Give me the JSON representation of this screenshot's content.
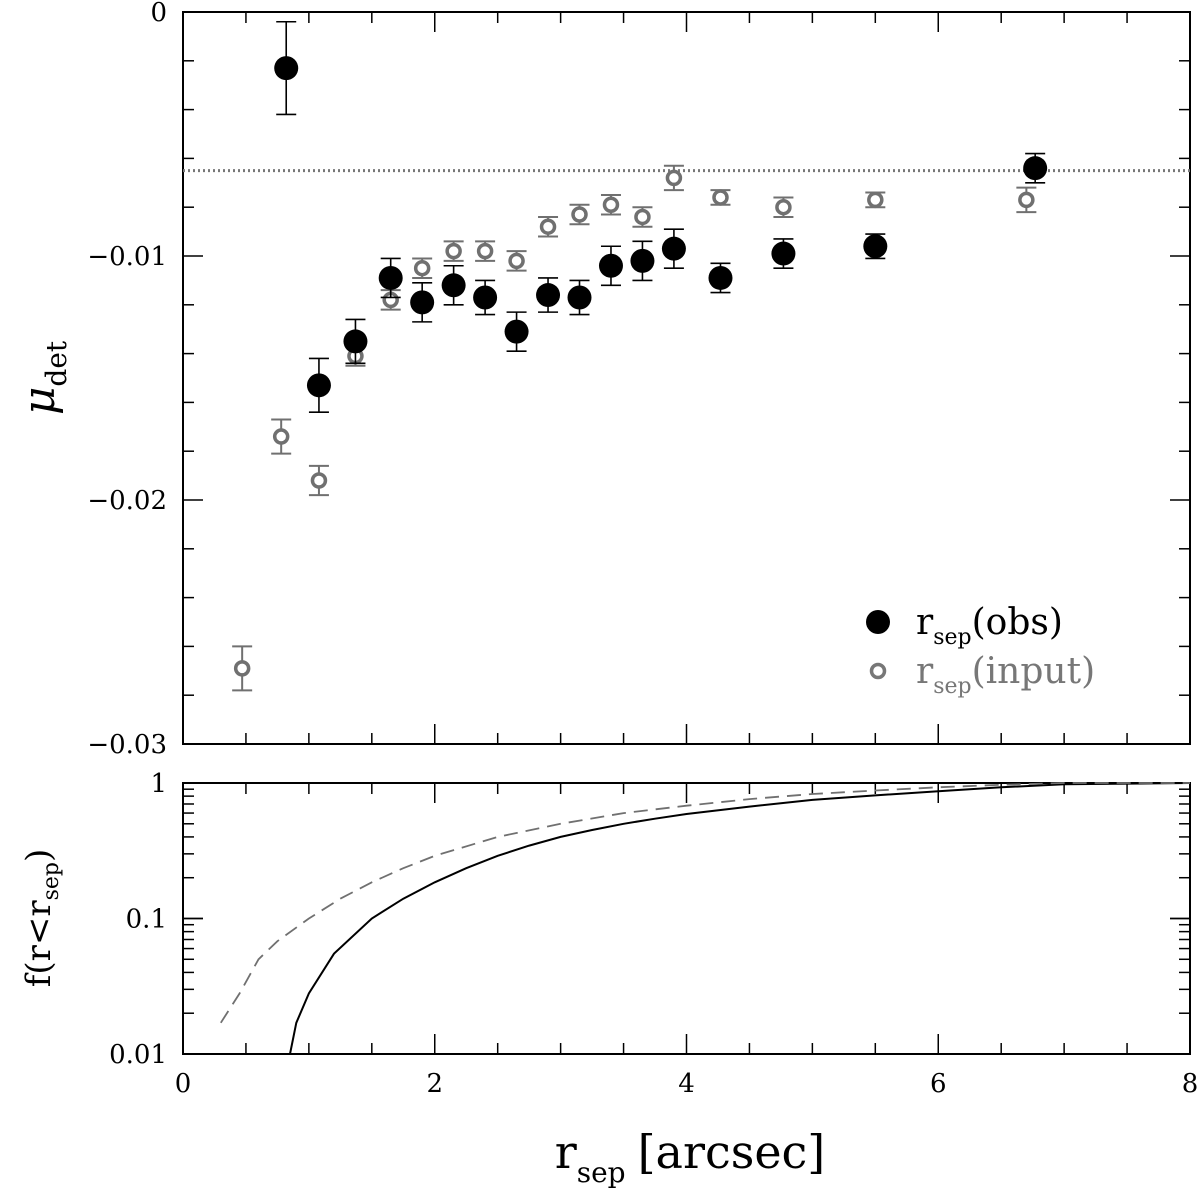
{
  "chart_data": [
    {
      "type": "scatter",
      "panel": "top",
      "ylabel": "μ",
      "ylabel_sub": "det",
      "xlim": [
        0,
        8
      ],
      "ylim": [
        -0.03,
        0
      ],
      "yticks": [
        0,
        -0.01,
        -0.02,
        -0.03
      ],
      "ytick_labels": [
        "0",
        "−0.01",
        "−0.02",
        "−0.03"
      ],
      "reference_line": {
        "y": -0.0065,
        "style": "dotted"
      },
      "series": [
        {
          "name": "r_sep(obs)",
          "legend_main": "r",
          "legend_sub": "sep",
          "legend_tail": "(obs)",
          "marker": "filled-circle",
          "color": "#000000",
          "points": [
            {
              "x": 0.82,
              "y": -0.0023,
              "err": 0.0019
            },
            {
              "x": 1.08,
              "y": -0.0153,
              "err": 0.0011
            },
            {
              "x": 1.37,
              "y": -0.0135,
              "err": 0.0009
            },
            {
              "x": 1.65,
              "y": -0.0109,
              "err": 0.0008
            },
            {
              "x": 1.9,
              "y": -0.0119,
              "err": 0.0008
            },
            {
              "x": 2.15,
              "y": -0.0112,
              "err": 0.0008
            },
            {
              "x": 2.4,
              "y": -0.0117,
              "err": 0.0007
            },
            {
              "x": 2.65,
              "y": -0.0131,
              "err": 0.0008
            },
            {
              "x": 2.9,
              "y": -0.0116,
              "err": 0.0007
            },
            {
              "x": 3.15,
              "y": -0.0117,
              "err": 0.0007
            },
            {
              "x": 3.4,
              "y": -0.0104,
              "err": 0.0008
            },
            {
              "x": 3.65,
              "y": -0.0102,
              "err": 0.0008
            },
            {
              "x": 3.9,
              "y": -0.0097,
              "err": 0.0008
            },
            {
              "x": 4.27,
              "y": -0.0109,
              "err": 0.0006
            },
            {
              "x": 4.77,
              "y": -0.0099,
              "err": 0.0006
            },
            {
              "x": 5.5,
              "y": -0.0096,
              "err": 0.0005
            },
            {
              "x": 6.77,
              "y": -0.0064,
              "err": 0.0006
            }
          ]
        },
        {
          "name": "r_sep(input)",
          "legend_main": "r",
          "legend_sub": "sep",
          "legend_tail": "(input)",
          "marker": "open-circle",
          "color": "#707070",
          "points": [
            {
              "x": 0.47,
              "y": -0.0269,
              "err": 0.0009
            },
            {
              "x": 0.78,
              "y": -0.0174,
              "err": 0.0007
            },
            {
              "x": 1.08,
              "y": -0.0192,
              "err": 0.0006
            },
            {
              "x": 1.37,
              "y": -0.0141,
              "err": 0.0004
            },
            {
              "x": 1.65,
              "y": -0.0118,
              "err": 0.0004
            },
            {
              "x": 1.9,
              "y": -0.0105,
              "err": 0.0004
            },
            {
              "x": 2.15,
              "y": -0.0098,
              "err": 0.0004
            },
            {
              "x": 2.4,
              "y": -0.0098,
              "err": 0.0004
            },
            {
              "x": 2.65,
              "y": -0.0102,
              "err": 0.0004
            },
            {
              "x": 2.9,
              "y": -0.0088,
              "err": 0.0004
            },
            {
              "x": 3.15,
              "y": -0.0083,
              "err": 0.0004
            },
            {
              "x": 3.4,
              "y": -0.0079,
              "err": 0.0004
            },
            {
              "x": 3.65,
              "y": -0.0084,
              "err": 0.0004
            },
            {
              "x": 3.9,
              "y": -0.0068,
              "err": 0.0005
            },
            {
              "x": 4.27,
              "y": -0.0076,
              "err": 0.0003
            },
            {
              "x": 4.77,
              "y": -0.008,
              "err": 0.0004
            },
            {
              "x": 5.5,
              "y": -0.0077,
              "err": 0.0003
            },
            {
              "x": 6.7,
              "y": -0.0077,
              "err": 0.0005
            }
          ]
        }
      ],
      "legend_position": "bottom-right"
    },
    {
      "type": "line",
      "panel": "bottom",
      "ylabel": "f(r<r",
      "ylabel_sub": "sep",
      "ylabel_tail": ")",
      "xlabel": "r",
      "xlabel_sub": "sep",
      "xlabel_tail": "[arcsec]",
      "xlim": [
        0,
        8
      ],
      "xticks": [
        0,
        2,
        4,
        6,
        8
      ],
      "xtick_labels": [
        "0",
        "2",
        "4",
        "6",
        "8"
      ],
      "ylog": true,
      "ylim": [
        0.01,
        1
      ],
      "yticks": [
        0.01,
        0.1,
        1
      ],
      "ytick_labels": [
        "0.01",
        "0.1",
        "1"
      ],
      "series": [
        {
          "name": "obs",
          "style": "solid",
          "color": "#000000",
          "x": [
            0.85,
            0.9,
            1.0,
            1.2,
            1.5,
            1.75,
            2.0,
            2.25,
            2.5,
            2.75,
            3.0,
            3.25,
            3.5,
            3.75,
            4.0,
            4.5,
            5.0,
            5.5,
            6.0,
            6.5,
            7.0,
            8.0
          ],
          "y": [
            0.01,
            0.017,
            0.028,
            0.055,
            0.1,
            0.14,
            0.185,
            0.235,
            0.29,
            0.345,
            0.4,
            0.45,
            0.5,
            0.545,
            0.59,
            0.67,
            0.75,
            0.81,
            0.87,
            0.93,
            0.98,
            1.0
          ]
        },
        {
          "name": "input",
          "style": "dashed",
          "color": "#707070",
          "x": [
            0.3,
            0.45,
            0.6,
            0.75,
            1.0,
            1.25,
            1.5,
            1.75,
            2.0,
            2.5,
            3.0,
            3.5,
            4.0,
            4.5,
            5.0,
            5.5,
            6.0,
            6.5,
            7.0,
            8.0
          ],
          "y": [
            0.017,
            0.028,
            0.05,
            0.068,
            0.1,
            0.14,
            0.185,
            0.235,
            0.29,
            0.4,
            0.5,
            0.6,
            0.68,
            0.76,
            0.83,
            0.88,
            0.93,
            0.97,
            1.0,
            1.0
          ]
        }
      ]
    }
  ]
}
